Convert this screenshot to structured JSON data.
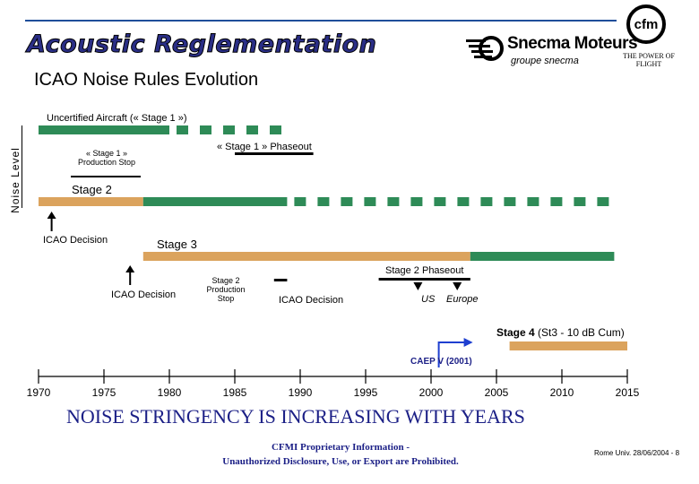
{
  "header": {
    "title": "Acoustic Reglementation",
    "subtitle": "ICAO Noise Rules Evolution",
    "snecma_name": "Snecma Moteurs",
    "snecma_group": "groupe snecma",
    "cfm_logo_text": "cfm",
    "cfm_slogan": "THE POWER OF FLIGHT"
  },
  "axis": {
    "ylabel": "Noise Level",
    "years": [
      "1970",
      "1975",
      "1980",
      "1985",
      "1990",
      "1995",
      "2000",
      "2005",
      "2010",
      "2015"
    ]
  },
  "labels": {
    "stage1": "Uncertified Aircraft (« Stage 1 »)",
    "stage1_phaseout": "« Stage 1 » Phaseout",
    "stage1_production_stop": "« Stage 1 » Production Stop",
    "stage2": "Stage 2",
    "icao_decision_1": "ICAO Decision",
    "stage3": "Stage 3",
    "stage2_phaseout": "Stage 2 Phaseout",
    "icao_decision_2": "ICAO Decision",
    "stage2_production_stop": "Stage 2 Production Stop",
    "icao_decision_3": "ICAO Decision",
    "us": "US",
    "europe": "Europe",
    "stage4": "Stage 4",
    "stage4_note": "(St3 - 10 dB Cum)",
    "caep": "CAEP V (2001)"
  },
  "footer": {
    "stringency": "NOISE STRINGENCY IS INCREASING WITH YEARS",
    "proprietary_1": "CFMI Proprietary Information -",
    "proprietary_2": "Unauthorized Disclosure, Use, or Export are Prohibited.",
    "date": "Rome Univ. 28/06/2004 - 8"
  },
  "colors": {
    "green": "#2e8b57",
    "tan": "#dba35d",
    "blue": "#1e3fd0",
    "navy": "#1b1f86",
    "black": "#000000"
  },
  "timeline": {
    "bars": [
      {
        "name": "stage1-bar",
        "from": 1970,
        "to": 1980,
        "color": "green",
        "dashed_to": 1989
      },
      {
        "name": "stage2-bar-tan",
        "from": 1970,
        "to": 1978,
        "color": "tan"
      },
      {
        "name": "stage2-bar-green",
        "from": 1978,
        "to": 1989,
        "color": "green",
        "dashed_to": 2015
      },
      {
        "name": "stage3-bar-tan",
        "from": 1978,
        "to": 2003,
        "color": "tan"
      },
      {
        "name": "stage3-bar-green",
        "from": 2003,
        "to": 2014,
        "color": "green"
      },
      {
        "name": "stage4-bar-tan",
        "from": 2006,
        "to": 2015,
        "color": "tan"
      }
    ],
    "events": [
      {
        "name": "icao-decision-arrow-1",
        "year": 1971
      },
      {
        "name": "icao-decision-arrow-2",
        "year": 1977
      },
      {
        "name": "us-marker",
        "year": 1999
      },
      {
        "name": "europe-marker",
        "year": 2002
      },
      {
        "name": "caep-arrow",
        "year": 2001
      }
    ],
    "phases": [
      {
        "name": "stage1-phaseout-bar",
        "from": 1985,
        "to": 1991
      },
      {
        "name": "stage2-production-stop-bar",
        "from": 1988,
        "to": 1989
      },
      {
        "name": "stage2-phaseout-bar",
        "from": 1996,
        "to": 2003
      }
    ]
  }
}
